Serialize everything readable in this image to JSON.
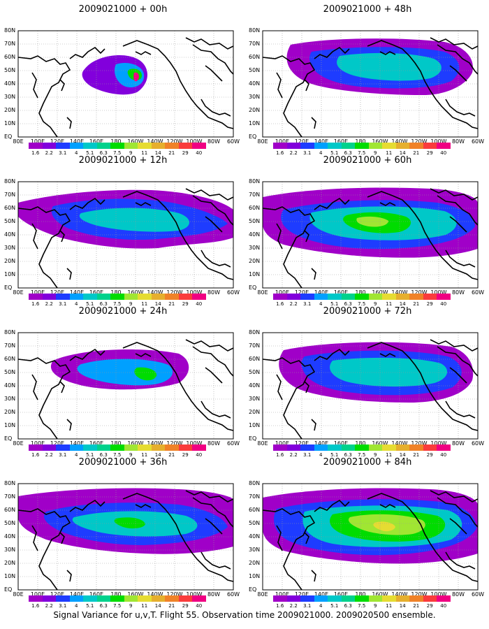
{
  "panels": [
    {
      "title": "2009021000 + 00h",
      "level": 0
    },
    {
      "title": "2009021000 + 48h",
      "level": 4
    },
    {
      "title": "2009021000 + 12h",
      "level": 1
    },
    {
      "title": "2009021000 + 60h",
      "level": 5
    },
    {
      "title": "2009021000 + 24h",
      "level": 2
    },
    {
      "title": "2009021000 + 72h",
      "level": 6
    },
    {
      "title": "2009021000 + 36h",
      "level": 3
    },
    {
      "title": "2009021000 + 84h",
      "level": 7
    }
  ],
  "lat_labels": [
    "80N",
    "70N",
    "60N",
    "50N",
    "40N",
    "30N",
    "20N",
    "10N",
    "EQ"
  ],
  "lon_labels": [
    "80E",
    "100E",
    "120E",
    "140E",
    "160E",
    "180",
    "160W",
    "140W",
    "120W",
    "100W",
    "80W",
    "60W"
  ],
  "colorbar": {
    "labels": [
      "1.6",
      "2.2",
      "3.1",
      "4",
      "5.1",
      "6.3",
      "7.5",
      "9",
      "11",
      "14",
      "21",
      "29",
      "40"
    ],
    "colors": [
      "#a000c8",
      "#8200dc",
      "#1e3cff",
      "#00a0ff",
      "#00c8c8",
      "#00d28c",
      "#00dc00",
      "#a0e632",
      "#e6dc32",
      "#e6af2d",
      "#f08228",
      "#fa3c3c",
      "#f00082"
    ]
  },
  "caption": "Signal Variance for u,v,T. Flight 55. Observation time 2009021000. 2009020500 ensemble."
}
